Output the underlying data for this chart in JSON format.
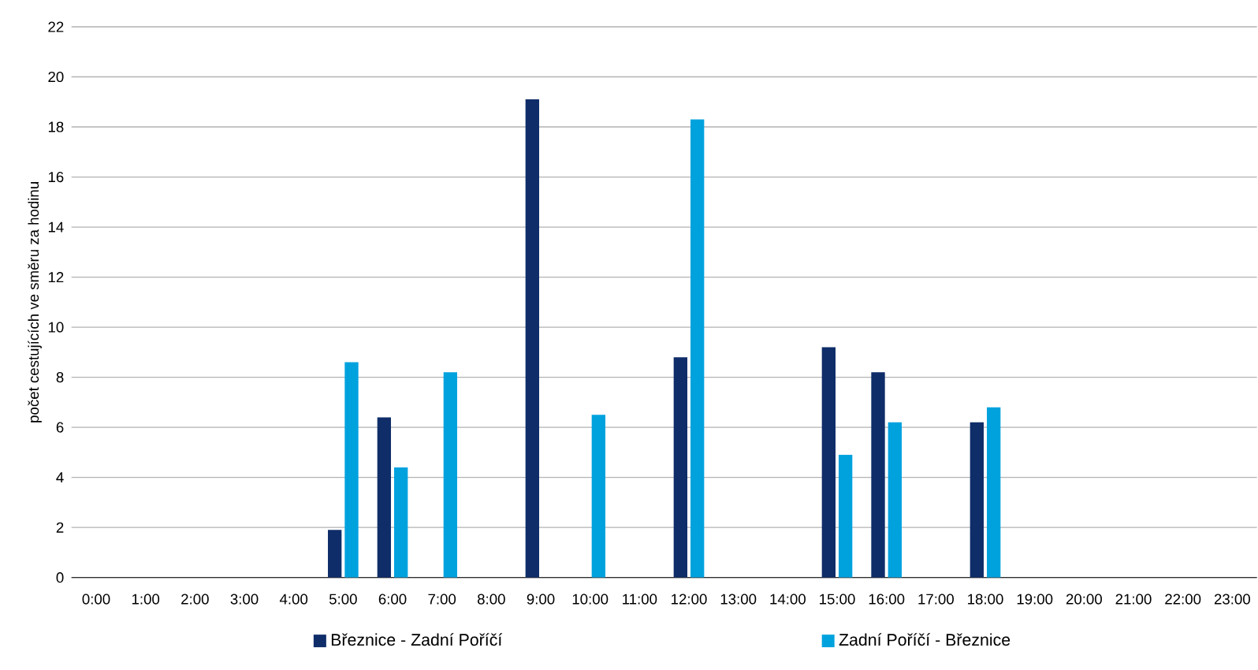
{
  "chart_data": {
    "type": "bar",
    "ylabel": "počet cestujících ve směru za hodinu",
    "categories": [
      "0:00",
      "1:00",
      "2:00",
      "3:00",
      "4:00",
      "5:00",
      "6:00",
      "7:00",
      "8:00",
      "9:00",
      "10:00",
      "11:00",
      "12:00",
      "13:00",
      "14:00",
      "15:00",
      "16:00",
      "17:00",
      "18:00",
      "19:00",
      "20:00",
      "21:00",
      "22:00",
      "23:00"
    ],
    "series": [
      {
        "name": "Březnice - Zadní Poříčí",
        "color": "#0f2d69",
        "values": [
          null,
          null,
          null,
          null,
          null,
          1.9,
          6.4,
          null,
          null,
          19.1,
          null,
          null,
          8.8,
          null,
          null,
          9.2,
          8.2,
          null,
          6.2,
          null,
          null,
          null,
          null,
          null
        ]
      },
      {
        "name": "Zadní Poříčí - Březnice",
        "color": "#00a2de",
        "values": [
          null,
          null,
          null,
          null,
          null,
          8.6,
          4.4,
          8.2,
          null,
          null,
          6.5,
          null,
          18.3,
          null,
          null,
          4.9,
          6.2,
          null,
          6.8,
          null,
          null,
          null,
          null,
          null
        ]
      }
    ],
    "ylim": [
      0,
      22
    ],
    "yticks": [
      0,
      2,
      4,
      6,
      8,
      10,
      12,
      14,
      16,
      18,
      20,
      22
    ],
    "grid": "y",
    "legend": "bottom"
  }
}
